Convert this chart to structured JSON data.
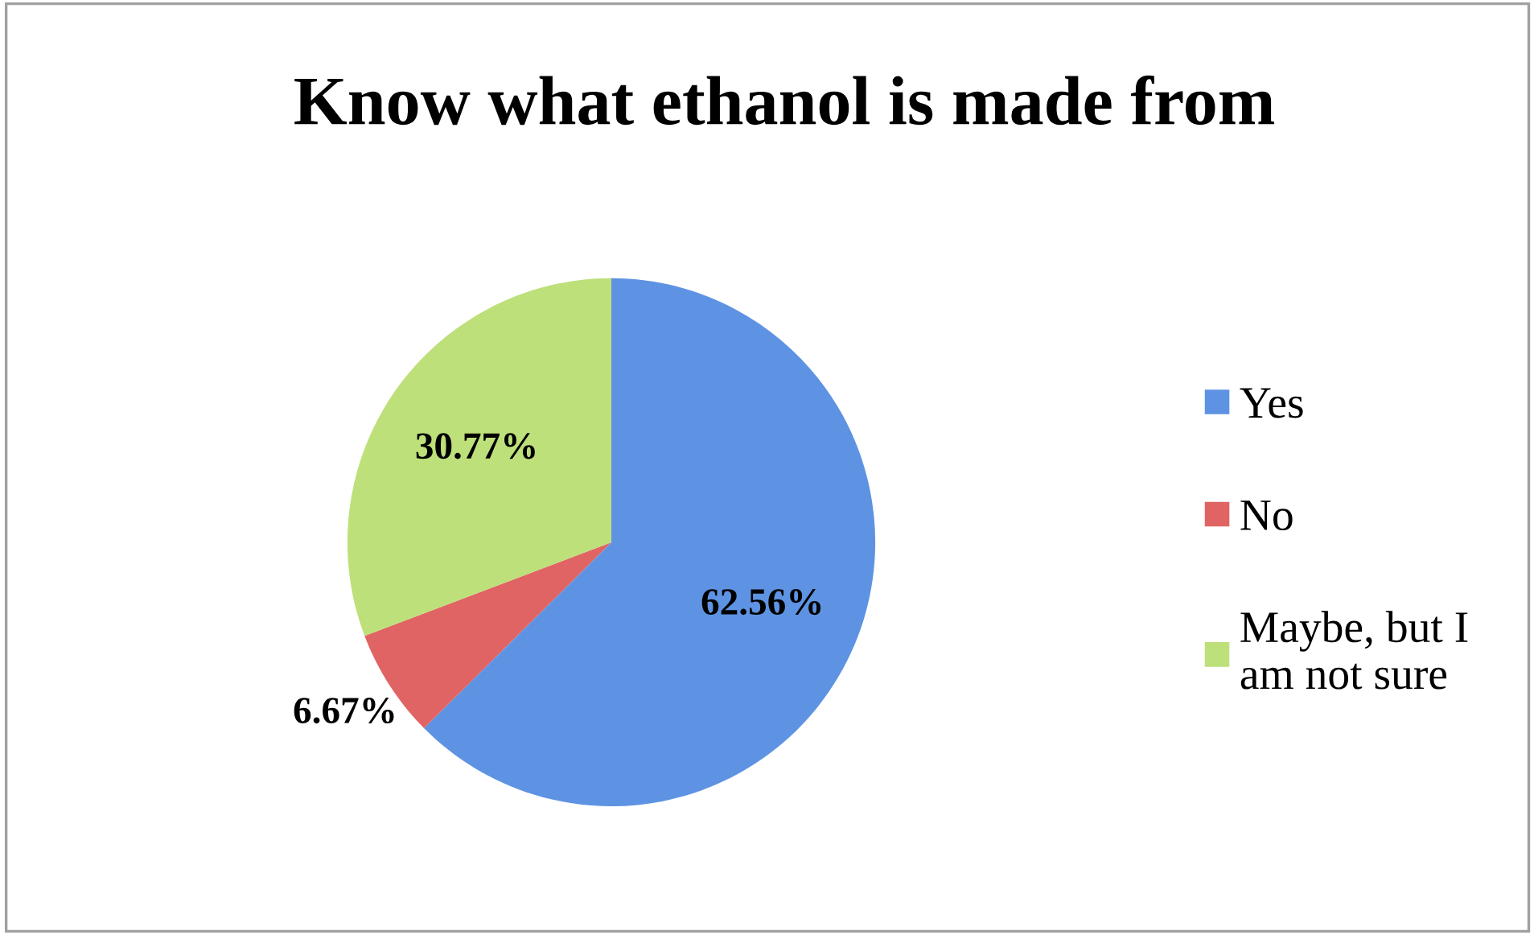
{
  "chart_data": {
    "type": "pie",
    "title": "Know what ethanol is made from",
    "categories": [
      "Yes",
      "No",
      "Maybe, but I\nam not sure"
    ],
    "values": [
      62.56,
      6.67,
      30.77
    ],
    "colors": [
      "#5e93e3",
      "#e06463",
      "#bde07a"
    ],
    "value_labels": [
      "62.56%",
      "6.67%",
      "30.77%"
    ],
    "legend": "right"
  }
}
